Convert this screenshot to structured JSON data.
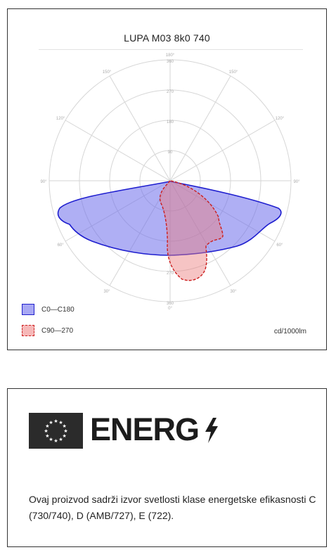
{
  "polar_card": {
    "title": "LUPA M03 8k0 740",
    "units": "cd/1000lm",
    "legend": [
      {
        "label": "C0—C180",
        "fill": "#a8a8f4",
        "stroke": "#2020cc",
        "style": "solid"
      },
      {
        "label": "C90—270",
        "fill": "#f6b8b8",
        "stroke": "#cc2020",
        "style": "dashed"
      }
    ]
  },
  "chart_data": {
    "type": "polar",
    "radial_ticks": [
      "90",
      "180",
      "270",
      "360"
    ],
    "angle_labels": [
      "180°",
      "150°",
      "150°",
      "120°",
      "120°",
      "90°",
      "90°",
      "60°",
      "60°",
      "30°",
      "30°",
      "0°"
    ],
    "series": [
      {
        "name": "C0—C180",
        "color": "#2020cc"
      },
      {
        "name": "C90—270",
        "color": "#cc2020"
      }
    ],
    "grid": true
  },
  "energy_card": {
    "logo_text": "ENERG",
    "icons": {
      "flag": "eu-flag-icon",
      "bolt": "lightning-bolt-icon"
    },
    "description": "Ovaj proizvod sadrži izvor svetlosti klase energetske efikasnosti C (730/740), D (AMB/727), E (722)."
  }
}
